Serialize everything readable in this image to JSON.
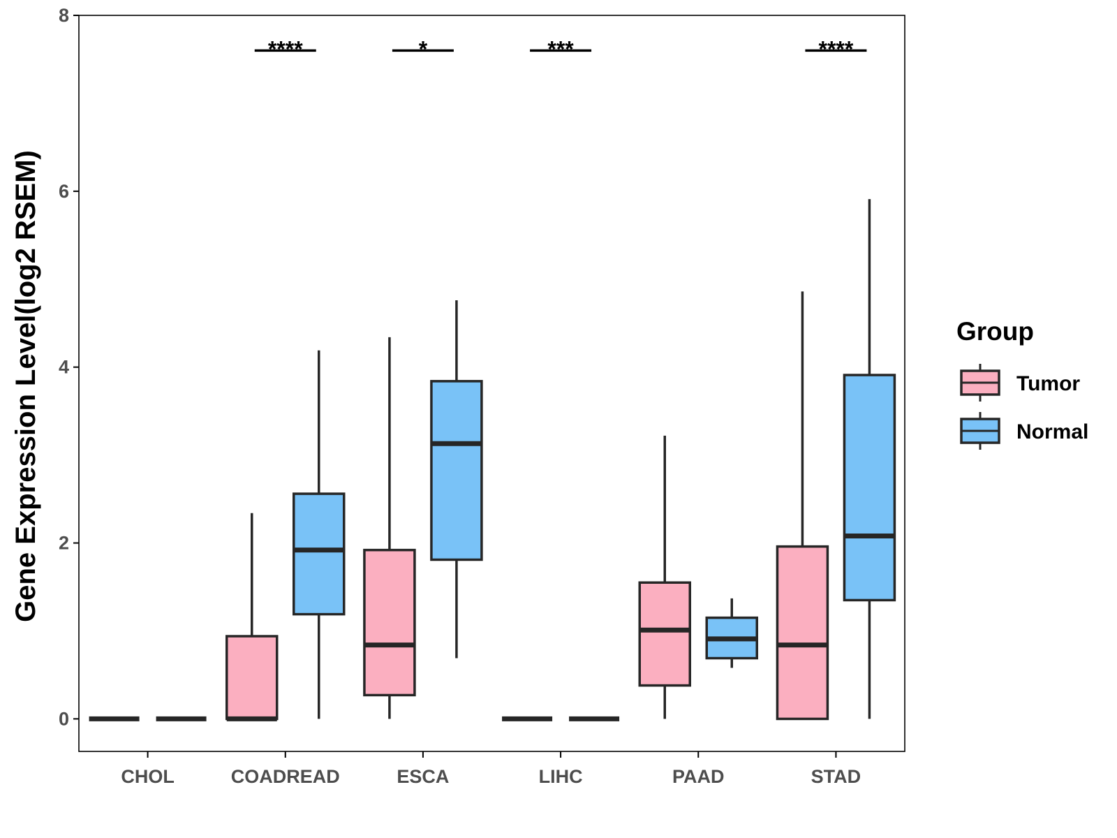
{
  "chart_data": {
    "type": "boxplot",
    "title": "",
    "xlabel": "",
    "ylabel": "Gene Expression Level(log2 RSEM)",
    "ylim": [
      -0.37,
      8
    ],
    "yticks": [
      0,
      2,
      4,
      6,
      8
    ],
    "categories": [
      "CHOL",
      "COADREAD",
      "ESCA",
      "LIHC",
      "PAAD",
      "STAD"
    ],
    "legend": {
      "title": "Group",
      "position": "right",
      "entries": [
        {
          "name": "Tumor",
          "color": "#FBAFC0"
        },
        {
          "name": "Normal",
          "color": "#79C2F7"
        }
      ]
    },
    "series": [
      {
        "name": "Tumor",
        "color": "#FBAFC0",
        "boxes": [
          {
            "category": "CHOL",
            "min": 0,
            "q1": 0,
            "median": 0,
            "q3": 0,
            "max": 0
          },
          {
            "category": "COADREAD",
            "min": 0,
            "q1": 0,
            "median": 0,
            "q3": 0.94,
            "max": 2.34
          },
          {
            "category": "ESCA",
            "min": 0,
            "q1": 0.27,
            "median": 0.84,
            "q3": 1.92,
            "max": 4.34
          },
          {
            "category": "LIHC",
            "min": 0,
            "q1": 0,
            "median": 0,
            "q3": 0,
            "max": 0
          },
          {
            "category": "PAAD",
            "min": 0,
            "q1": 0.38,
            "median": 1.01,
            "q3": 1.55,
            "max": 3.22
          },
          {
            "category": "STAD",
            "min": 0,
            "q1": 0,
            "median": 0.84,
            "q3": 1.96,
            "max": 4.86
          }
        ]
      },
      {
        "name": "Normal",
        "color": "#79C2F7",
        "boxes": [
          {
            "category": "CHOL",
            "min": 0,
            "q1": 0,
            "median": 0,
            "q3": 0,
            "max": 0
          },
          {
            "category": "COADREAD",
            "min": 0,
            "q1": 1.19,
            "median": 1.92,
            "q3": 2.56,
            "max": 4.19
          },
          {
            "category": "ESCA",
            "min": 0.69,
            "q1": 1.81,
            "median": 3.13,
            "q3": 3.84,
            "max": 4.76
          },
          {
            "category": "LIHC",
            "min": 0,
            "q1": 0,
            "median": 0,
            "q3": 0,
            "max": 0
          },
          {
            "category": "PAAD",
            "min": 0.58,
            "q1": 0.69,
            "median": 0.91,
            "q3": 1.15,
            "max": 1.37
          },
          {
            "category": "STAD",
            "min": 0,
            "q1": 1.35,
            "median": 2.08,
            "q3": 3.91,
            "max": 5.91
          }
        ]
      }
    ],
    "significance": [
      {
        "category": "COADREAD",
        "label": "****",
        "y": 7.6
      },
      {
        "category": "ESCA",
        "label": "*",
        "y": 7.6
      },
      {
        "category": "LIHC",
        "label": "***",
        "y": 7.6
      },
      {
        "category": "STAD",
        "label": "****",
        "y": 7.6
      }
    ]
  }
}
